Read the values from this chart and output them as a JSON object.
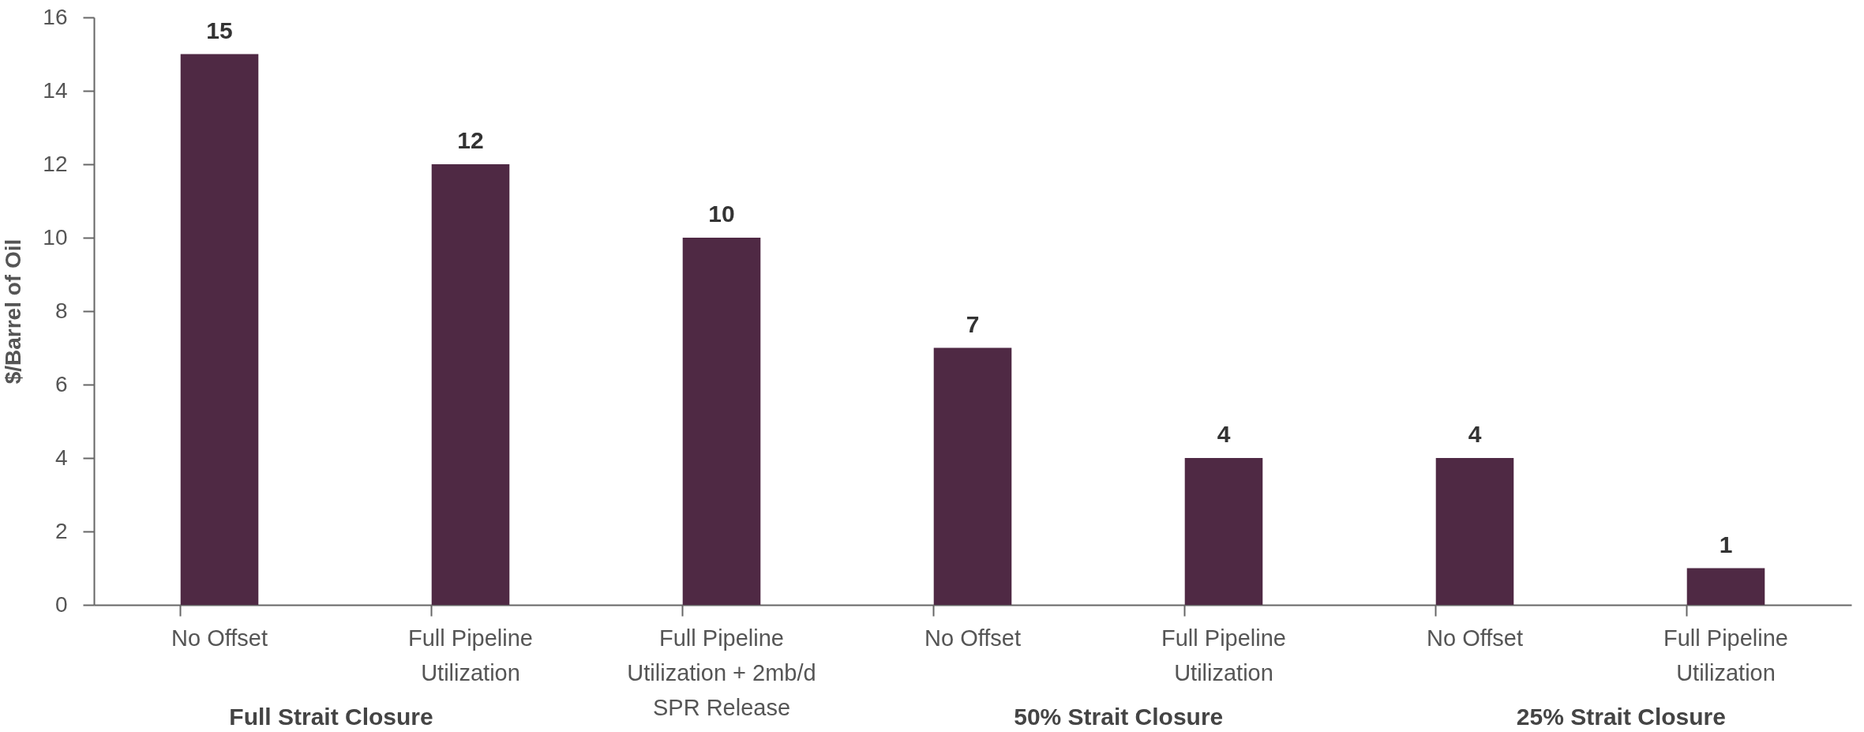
{
  "chart_data": {
    "type": "bar",
    "ylabel": "$/Barrel of Oil",
    "categories": [
      "No Offset",
      "Full Pipeline Utilization",
      "Full Pipeline Utilization + 2mb/d SPR Release",
      "No Offset",
      "Full Pipeline Utilization",
      "No Offset",
      "Full Pipeline Utilization"
    ],
    "values": [
      15,
      12,
      10,
      7,
      4,
      4,
      1
    ],
    "color": "#4f2944",
    "ylim": [
      0,
      16
    ],
    "yticks": [
      0,
      2,
      4,
      6,
      8,
      10,
      12,
      14,
      16
    ],
    "data_labels": true,
    "annotations": [
      "Full Strait Closure",
      "50% Strait Closure",
      "25% Strait Closure"
    ]
  }
}
